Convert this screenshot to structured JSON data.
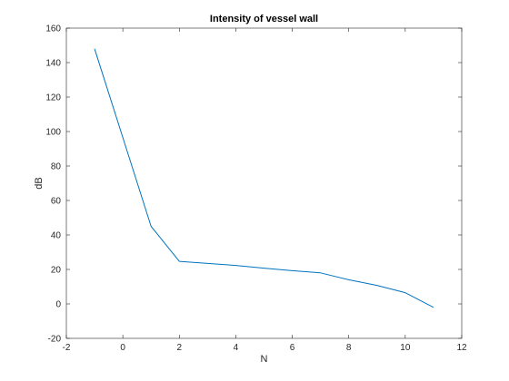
{
  "chart_data": {
    "type": "line",
    "title": "Intensity of vessel wall",
    "xlabel": "N",
    "ylabel": "dB",
    "xlim": [
      -2,
      12
    ],
    "ylim": [
      -20,
      160
    ],
    "xticks": [
      "-2",
      "0",
      "2",
      "4",
      "6",
      "8",
      "10",
      "12"
    ],
    "yticks": [
      "-20",
      "0",
      "20",
      "40",
      "60",
      "80",
      "100",
      "120",
      "140",
      "160"
    ],
    "grid": false,
    "legend": "none",
    "series": [
      {
        "color": "#0072bd",
        "x": [
          -1,
          1,
          2,
          3,
          4,
          5,
          6,
          7,
          8,
          9,
          10,
          11
        ],
        "y": [
          148,
          45,
          24.7,
          23.5,
          22.3,
          20.7,
          19.3,
          18,
          14,
          10.7,
          6.5,
          -2
        ]
      }
    ]
  }
}
